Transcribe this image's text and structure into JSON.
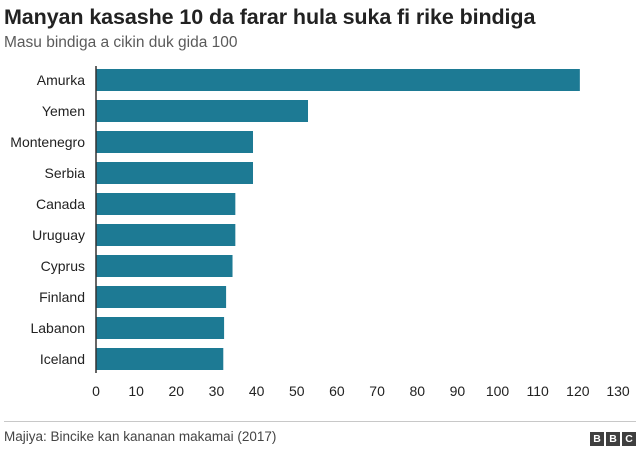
{
  "header": {
    "title": "Manyan kasashe 10 da farar hula suka fi rike bindiga",
    "subtitle": "Masu bindiga a cikin duk gida 100"
  },
  "footer": {
    "source": "Majiya: Bincike kan kananan makamai (2017)",
    "logo_letters": [
      "B",
      "B",
      "C"
    ]
  },
  "colors": {
    "bar": "#1d7a94",
    "axis": "#333333",
    "text": "#222222"
  },
  "chart_data": {
    "type": "bar",
    "orientation": "horizontal",
    "title": "Manyan kasashe 10 da farar hula suka fi rike bindiga",
    "subtitle": "Masu bindiga a cikin duk gida 100",
    "categories": [
      "Amurka",
      "Yemen",
      "Montenegro",
      "Serbia",
      "Canada",
      "Uruguay",
      "Cyprus",
      "Finland",
      "Labanon",
      "Iceland"
    ],
    "values": [
      120.5,
      52.8,
      39.1,
      39.1,
      34.7,
      34.7,
      34.0,
      32.4,
      31.9,
      31.7
    ],
    "xlim": [
      0,
      130
    ],
    "xticks": [
      0,
      10,
      20,
      30,
      40,
      50,
      60,
      70,
      80,
      90,
      100,
      110,
      120,
      130
    ],
    "grid": false,
    "legend": "none"
  }
}
